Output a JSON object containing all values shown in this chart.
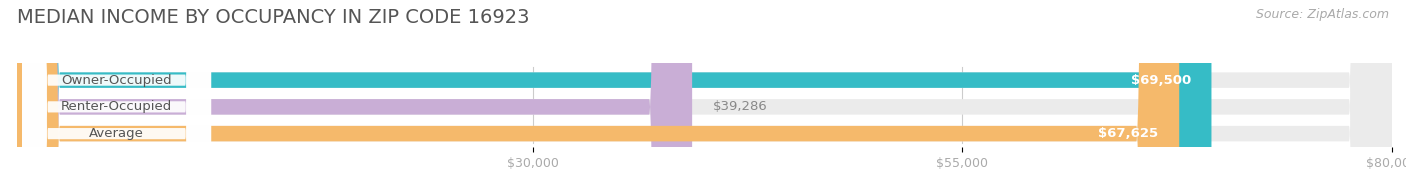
{
  "title": "MEDIAN INCOME BY OCCUPANCY IN ZIP CODE 16923",
  "source": "Source: ZipAtlas.com",
  "categories": [
    "Owner-Occupied",
    "Renter-Occupied",
    "Average"
  ],
  "values": [
    69500,
    39286,
    67625
  ],
  "bar_colors": [
    "#36bcc6",
    "#c9aed6",
    "#f5b96b"
  ],
  "bar_bg_color": "#ebebeb",
  "value_labels": [
    "$69,500",
    "$39,286",
    "$67,625"
  ],
  "label_inside": [
    true,
    false,
    true
  ],
  "xmin": 0,
  "xmax": 80000,
  "xticks": [
    30000,
    55000,
    80000
  ],
  "xticklabels": [
    "$30,000",
    "$55,000",
    "$80,000"
  ],
  "title_fontsize": 14,
  "source_fontsize": 9,
  "label_fontsize": 9.5,
  "value_fontsize": 9.5,
  "tick_fontsize": 9,
  "bar_height": 0.58,
  "background_color": "#ffffff"
}
